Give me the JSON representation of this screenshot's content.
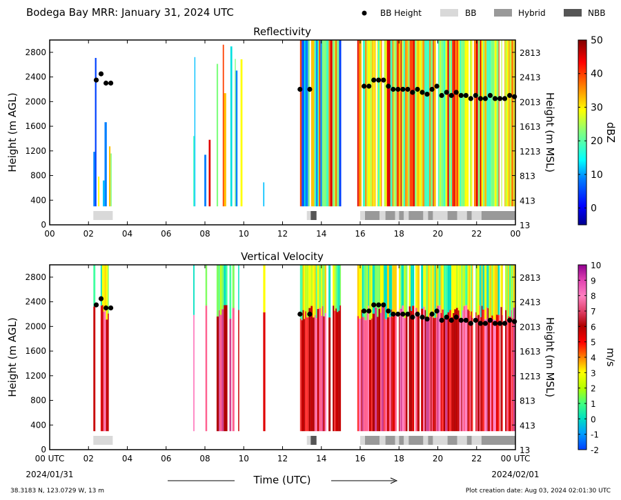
{
  "header": {
    "title": "Bodega Bay MRR:  January 31, 2024 UTC",
    "legend": [
      {
        "label": "BB Height",
        "symbol": "dot",
        "color": "#000000"
      },
      {
        "label": "BB",
        "symbol": "box",
        "color": "#d9d9d9"
      },
      {
        "label": "Hybrid",
        "symbol": "box",
        "color": "#999999"
      },
      {
        "label": "NBB",
        "symbol": "box",
        "color": "#555555"
      }
    ]
  },
  "axes": {
    "x_ticks": [
      "00",
      "02",
      "04",
      "06",
      "08",
      "10",
      "12",
      "14",
      "16",
      "18",
      "20",
      "22",
      "00"
    ],
    "x_ticks_bottom": [
      "00 UTC",
      "02",
      "04",
      "06",
      "08",
      "10",
      "12",
      "14",
      "16",
      "18",
      "20",
      "22",
      "00 UTC"
    ],
    "x_date_start": "2024/01/31",
    "x_date_end": "2024/02/01",
    "x_label": "Time (UTC)",
    "y_ticks": [
      "0",
      "400",
      "800",
      "1200",
      "1600",
      "2000",
      "2400",
      "2800"
    ],
    "y_ticks_right": [
      "13",
      "413",
      "813",
      "1213",
      "1613",
      "2013",
      "2413",
      "2813"
    ],
    "y_label_left": "Height (m AGL)",
    "y_label_right": "Height (m MSL)"
  },
  "panels": {
    "reflectivity": {
      "title": "Reflectivity",
      "cbar_label": "dBZ",
      "cbar_ticks": [
        "0",
        "10",
        "20",
        "30",
        "40",
        "50"
      ]
    },
    "velocity": {
      "title": "Vertical Velocity",
      "cbar_label": "m/s",
      "cbar_ticks": [
        "-2",
        "-1",
        "0",
        "1",
        "2",
        "3",
        "4",
        "5",
        "6",
        "7",
        "8",
        "9",
        "10"
      ]
    }
  },
  "footer": {
    "location": "38.3183 N, 123.0729 W, 13 m",
    "creation": "Plot creation date: Aug 03, 2024 02:01:30 UTC"
  },
  "chart_data": [
    {
      "type": "heatmap",
      "title": "Reflectivity",
      "xlabel": "Time (UTC)",
      "ylabel": "Height (m AGL)",
      "ylabel_right": "Height (m MSL)",
      "xlim_hours": [
        0,
        24
      ],
      "ylim": [
        0,
        3000
      ],
      "colorbar": {
        "label": "dBZ",
        "range": [
          -5,
          50
        ]
      },
      "precip_periods_hours": [
        [
          2.25,
          3.2
        ],
        [
          7.4,
          7.5
        ],
        [
          7.8,
          8.2
        ],
        [
          8.6,
          9.9
        ],
        [
          11.0,
          11.1
        ],
        [
          12.9,
          15.0
        ],
        [
          15.85,
          24.0
        ]
      ],
      "bb_height": {
        "x_hours": [
          2.4,
          2.65,
          2.9,
          3.15,
          12.9,
          13.4,
          16.2,
          16.45,
          16.7,
          16.95,
          17.2,
          17.45,
          17.7,
          17.95,
          18.2,
          18.45,
          18.7,
          18.95,
          19.2,
          19.45,
          19.7,
          19.95,
          20.2,
          20.45,
          20.7,
          20.95,
          21.2,
          21.45,
          21.7,
          21.95,
          22.2,
          22.45,
          22.7,
          22.95,
          23.2,
          23.45,
          23.7,
          23.95
        ],
        "y_m_agl": [
          2350,
          2450,
          2300,
          2300,
          2200,
          2200,
          2250,
          2250,
          2350,
          2350,
          2350,
          2250,
          2200,
          2200,
          2200,
          2200,
          2150,
          2200,
          2150,
          2120,
          2200,
          2250,
          2100,
          2150,
          2100,
          2150,
          2100,
          2100,
          2050,
          2100,
          2050,
          2050,
          2100,
          2050,
          2050,
          2050,
          2100,
          2080
        ]
      },
      "bb_type": [
        {
          "start": 2.25,
          "end": 3.25,
          "type": "BB"
        },
        {
          "start": 13.25,
          "end": 13.45,
          "type": "BB"
        },
        {
          "start": 13.45,
          "end": 13.75,
          "type": "NBB"
        },
        {
          "start": 16.0,
          "end": 16.25,
          "type": "BB"
        },
        {
          "start": 16.25,
          "end": 17.0,
          "type": "Hybrid"
        },
        {
          "start": 17.0,
          "end": 17.3,
          "type": "BB"
        },
        {
          "start": 17.3,
          "end": 17.8,
          "type": "Hybrid"
        },
        {
          "start": 17.8,
          "end": 18.0,
          "type": "BB"
        },
        {
          "start": 18.0,
          "end": 18.25,
          "type": "Hybrid"
        },
        {
          "start": 18.25,
          "end": 18.5,
          "type": "BB"
        },
        {
          "start": 18.5,
          "end": 19.25,
          "type": "Hybrid"
        },
        {
          "start": 19.25,
          "end": 19.5,
          "type": "BB"
        },
        {
          "start": 19.5,
          "end": 19.75,
          "type": "Hybrid"
        },
        {
          "start": 19.75,
          "end": 20.5,
          "type": "BB"
        },
        {
          "start": 20.5,
          "end": 21.0,
          "type": "Hybrid"
        },
        {
          "start": 21.0,
          "end": 21.5,
          "type": "BB"
        },
        {
          "start": 21.5,
          "end": 21.75,
          "type": "Hybrid"
        },
        {
          "start": 21.75,
          "end": 22.25,
          "type": "BB"
        },
        {
          "start": 22.25,
          "end": 24.0,
          "type": "Hybrid"
        }
      ]
    },
    {
      "type": "heatmap",
      "title": "Vertical Velocity",
      "xlabel": "Time (UTC)",
      "ylabel": "Height (m AGL)",
      "ylabel_right": "Height (m MSL)",
      "xlim_hours": [
        0,
        24
      ],
      "ylim": [
        0,
        3000
      ],
      "colorbar": {
        "label": "m/s",
        "range": [
          -2,
          10
        ]
      },
      "precip_periods_hours": [
        [
          2.25,
          3.2
        ],
        [
          7.4,
          7.5
        ],
        [
          7.8,
          8.2
        ],
        [
          8.6,
          9.9
        ],
        [
          11.0,
          11.1
        ],
        [
          12.9,
          15.0
        ],
        [
          15.85,
          24.0
        ]
      ],
      "bb_height": {
        "x_hours": [
          2.4,
          2.65,
          2.9,
          3.15,
          12.9,
          13.4,
          16.2,
          16.45,
          16.7,
          16.95,
          17.2,
          17.45,
          17.7,
          17.95,
          18.2,
          18.45,
          18.7,
          18.95,
          19.2,
          19.45,
          19.7,
          19.95,
          20.2,
          20.45,
          20.7,
          20.95,
          21.2,
          21.45,
          21.7,
          21.95,
          22.2,
          22.45,
          22.7,
          22.95,
          23.2,
          23.45,
          23.7,
          23.95
        ],
        "y_m_agl": [
          2350,
          2450,
          2300,
          2300,
          2200,
          2200,
          2250,
          2250,
          2350,
          2350,
          2350,
          2250,
          2200,
          2200,
          2200,
          2200,
          2150,
          2200,
          2150,
          2120,
          2200,
          2250,
          2100,
          2150,
          2100,
          2150,
          2100,
          2100,
          2050,
          2100,
          2050,
          2050,
          2100,
          2050,
          2050,
          2050,
          2100,
          2080
        ]
      }
    }
  ]
}
